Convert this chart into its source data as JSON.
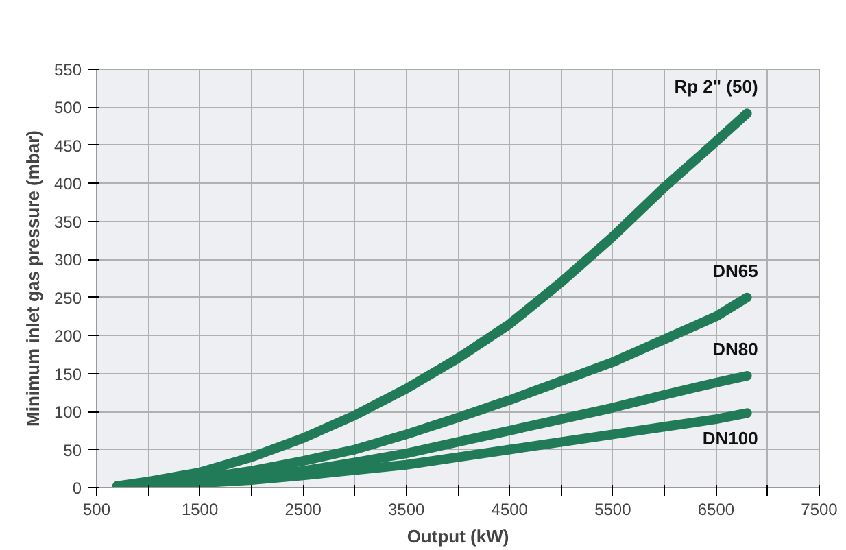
{
  "chart_data": {
    "type": "line",
    "xlabel": "Output (kW)",
    "ylabel": "Minimum inlet gas pressure (mbar)",
    "x": [
      700,
      1000,
      1500,
      2000,
      2500,
      3000,
      3500,
      4000,
      4500,
      5000,
      5500,
      6000,
      6500,
      6800
    ],
    "series": [
      {
        "name": "Rp 2\" (50)",
        "color": "#217a58",
        "values": [
          2,
          8,
          20,
          40,
          65,
          95,
          130,
          170,
          215,
          270,
          330,
          395,
          455,
          492
        ]
      },
      {
        "name": "DN65",
        "color": "#217a58",
        "values": [
          2,
          5,
          12,
          22,
          35,
          50,
          70,
          92,
          115,
          140,
          165,
          195,
          225,
          250
        ]
      },
      {
        "name": "DN80",
        "color": "#217a58",
        "values": [
          2,
          4,
          8,
          14,
          22,
          33,
          45,
          60,
          75,
          90,
          105,
          122,
          138,
          147
        ]
      },
      {
        "name": "DN100",
        "color": "#217a58",
        "values": [
          2,
          3,
          6,
          10,
          16,
          23,
          30,
          40,
          50,
          60,
          70,
          80,
          90,
          98
        ]
      }
    ],
    "xlim": [
      500,
      7500
    ],
    "ylim": [
      0,
      550
    ],
    "xticks": [
      500,
      {
        "value": 1000,
        "label": null
      },
      1500,
      {
        "value": 2000,
        "label": null
      },
      2500,
      {
        "value": 3000,
        "label": null
      },
      3500,
      {
        "value": 4000,
        "label": null
      },
      4500,
      {
        "value": 5000,
        "label": null
      },
      5500,
      {
        "value": 6000,
        "label": null
      },
      6500,
      {
        "value": 7000,
        "label": null
      },
      7500
    ],
    "yticks": [
      0,
      50,
      100,
      150,
      200,
      250,
      300,
      350,
      400,
      450,
      500,
      550
    ],
    "grid": true,
    "legend": false,
    "marker": "none",
    "line_style": "solid"
  }
}
